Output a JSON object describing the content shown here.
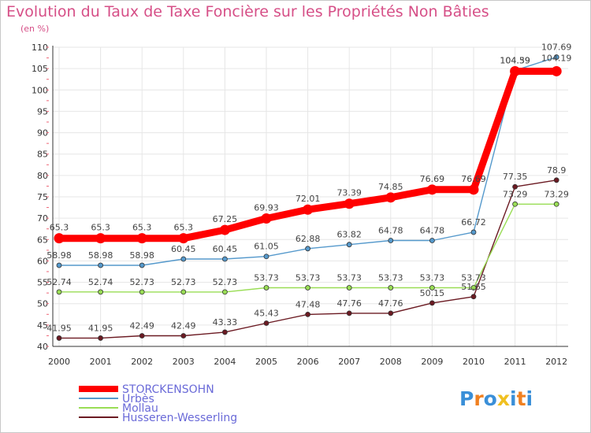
{
  "chart_data": {
    "type": "line",
    "title": "Evolution du Taux de Taxe Foncière sur les Propriétés Non Bâties",
    "subtitle": "(en %)",
    "x": [
      "2000",
      "2001",
      "2002",
      "2003",
      "2004",
      "2005",
      "2006",
      "2007",
      "2008",
      "2009",
      "2010",
      "2011",
      "2012"
    ],
    "ylim": [
      40,
      110
    ],
    "yticks": [
      40,
      45,
      50,
      55,
      60,
      65,
      70,
      75,
      80,
      85,
      90,
      95,
      100,
      105,
      110
    ],
    "grid": true,
    "legend_position": "bottom-left",
    "series": [
      {
        "name": "STORCKENSOHN",
        "color": "#ff0000",
        "values": [
          65.3,
          65.3,
          65.3,
          65.3,
          67.25,
          69.93,
          72.01,
          73.39,
          74.85,
          76.69,
          76.69,
          104.39,
          104.39
        ],
        "labels": [
          "65.3",
          "65.3",
          "65.3",
          "65.3",
          "67.25",
          "69.93",
          "72.01",
          "73.39",
          "74.85",
          "76.69",
          "76.69",
          "104.39",
          ""
        ]
      },
      {
        "name": "Urbès",
        "color": "#5599cc",
        "values": [
          58.98,
          58.98,
          58.98,
          60.45,
          60.45,
          61.05,
          62.88,
          63.82,
          64.78,
          64.78,
          66.72,
          104.59,
          107.69
        ],
        "labels": [
          "58.98",
          "58.98",
          "58.98",
          "60.45",
          "60.45",
          "61.05",
          "62.88",
          "63.82",
          "64.78",
          "64.78",
          "66.72",
          "104.59",
          "107.69"
        ]
      },
      {
        "name": "Mollau",
        "color": "#99dd55",
        "values": [
          52.74,
          52.74,
          52.73,
          52.73,
          52.73,
          53.73,
          53.73,
          53.73,
          53.73,
          53.73,
          53.73,
          73.29,
          73.29
        ],
        "labels": [
          "52.74",
          "52.74",
          "52.73",
          "52.73",
          "52.73",
          "53.73",
          "53.73",
          "53.73",
          "53.73",
          "53.73",
          "53.73",
          "73.29",
          "73.29"
        ]
      },
      {
        "name": "Husseren-Wesserling",
        "color": "#6b1a22",
        "values": [
          41.95,
          41.95,
          42.49,
          42.49,
          43.33,
          45.43,
          47.48,
          47.76,
          47.76,
          50.15,
          51.65,
          77.35,
          78.9
        ],
        "labels": [
          "41.95",
          "41.95",
          "42.49",
          "42.49",
          "43.33",
          "45.43",
          "47.48",
          "47.76",
          "47.76",
          "50.15",
          "51.65",
          "77.35",
          "78.9"
        ]
      }
    ],
    "extra_labels": [
      "104.19"
    ]
  },
  "legend_colors": {
    "STORCKENSOHN": "#6a6ad8",
    "Urbès": "#6a6ad8",
    "Mollau": "#6a6ad8",
    "Husseren-Wesserling": "#6a6ad8"
  },
  "logo": {
    "text": "Proxiti",
    "letter_colors": [
      "#3a8fd8",
      "#f08020",
      "#3a8fd8",
      "#f0c020",
      "#3a8fd8",
      "#f08020",
      "#3a8fd8"
    ]
  }
}
